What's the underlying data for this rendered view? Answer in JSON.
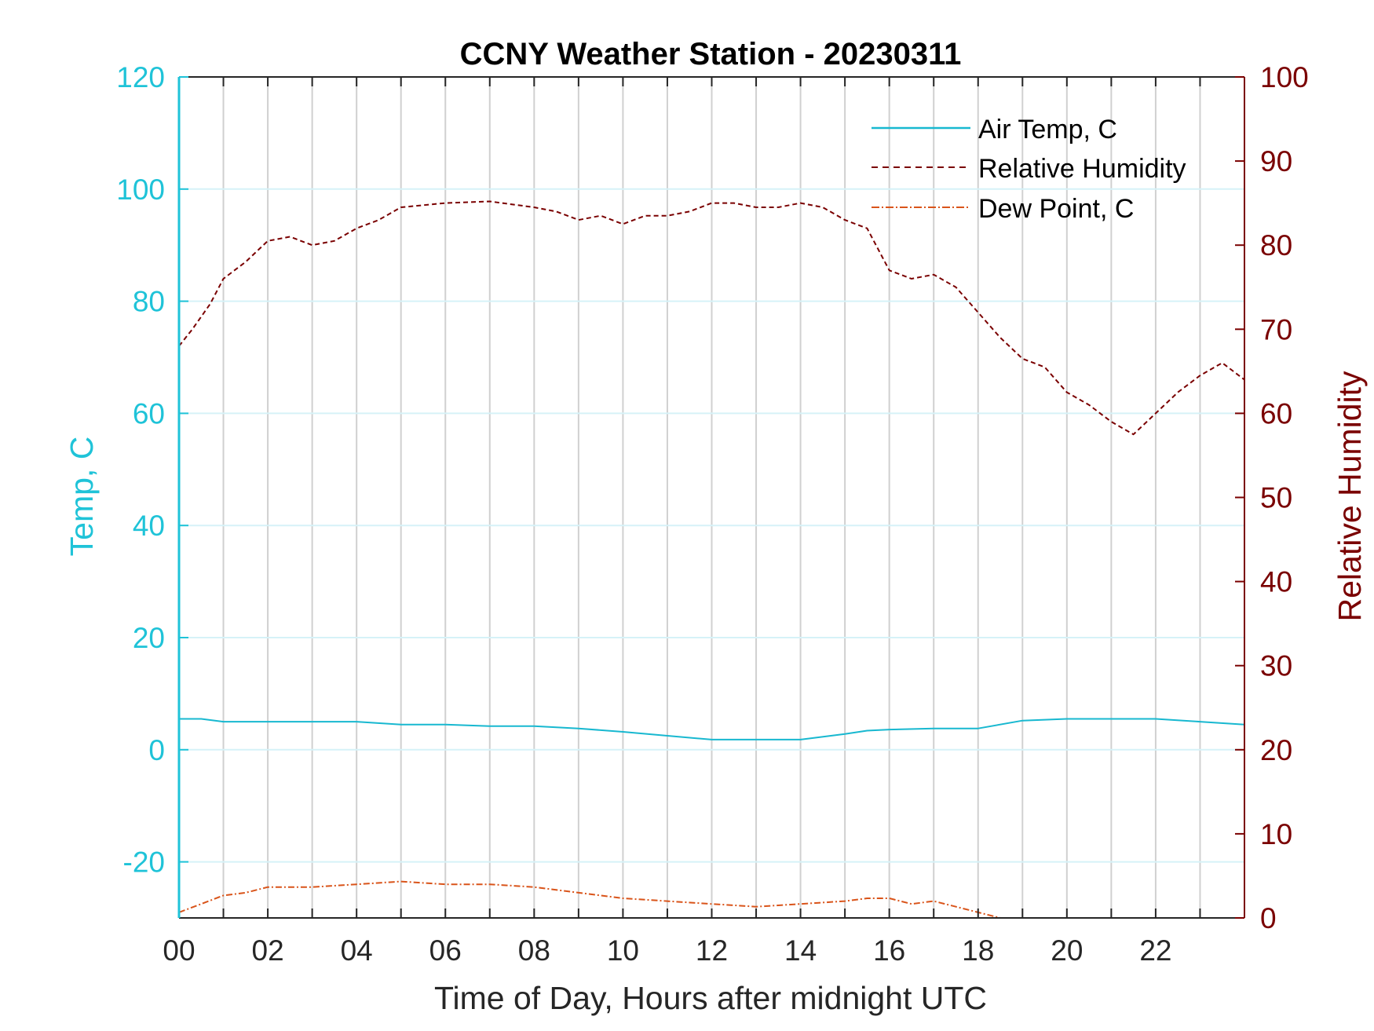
{
  "chart_data": {
    "type": "line",
    "title": "CCNY Weather Station - 20230311",
    "xlabel": "Time of Day, Hours after midnight UTC",
    "ylabel_left": "Temp, C",
    "ylabel_right": "Relative Humidity",
    "xlim": [
      0,
      24
    ],
    "ylim_left": [
      -30,
      120
    ],
    "ylim_right": [
      0,
      100
    ],
    "x_ticks": [
      0,
      2,
      4,
      6,
      8,
      10,
      12,
      14,
      16,
      18,
      20,
      22
    ],
    "x_tick_labels": [
      "00",
      "02",
      "04",
      "06",
      "08",
      "10",
      "12",
      "14",
      "16",
      "18",
      "20",
      "22"
    ],
    "y_left_ticks": [
      -20,
      0,
      20,
      40,
      60,
      80,
      100,
      120
    ],
    "y_left_tick_labels": [
      "-20",
      "0",
      "20",
      "40",
      "60",
      "80",
      "100",
      "120"
    ],
    "y_right_ticks": [
      0,
      10,
      20,
      30,
      40,
      50,
      60,
      70,
      80,
      90,
      100
    ],
    "y_right_tick_labels": [
      "0",
      "10",
      "20",
      "30",
      "40",
      "50",
      "60",
      "70",
      "80",
      "90",
      "100"
    ],
    "grid": true,
    "legend_position": "top-right",
    "colors": {
      "left_axis": "#1fc3d8",
      "right_axis": "#7a0000",
      "air_temp": "#18b8d0",
      "humidity": "#7a0000",
      "dew_point": "#d9541a",
      "grid_vertical": "#d0d0d0",
      "grid_horizontal": "#d6f2f8"
    },
    "series": [
      {
        "name": "Air Temp, C",
        "axis": "left",
        "style": "solid",
        "x": [
          0,
          0.5,
          1,
          2,
          3,
          4,
          5,
          6,
          7,
          8,
          9,
          10,
          11,
          12,
          13,
          14,
          15,
          15.5,
          16,
          17,
          18,
          19,
          20,
          21,
          22,
          23,
          24
        ],
        "values": [
          5.5,
          5.5,
          5,
          5,
          5,
          5,
          4.5,
          4.5,
          4.2,
          4.2,
          3.8,
          3.2,
          2.5,
          1.8,
          1.8,
          1.8,
          2.8,
          3.4,
          3.6,
          3.8,
          3.8,
          5.2,
          5.5,
          5.5,
          5.5,
          5,
          4.5
        ]
      },
      {
        "name": "Relative Humidity",
        "axis": "right",
        "style": "dashed",
        "x": [
          0,
          0.3,
          0.7,
          1,
          1.5,
          2,
          2.5,
          3,
          3.5,
          4,
          4.5,
          5,
          6,
          7,
          8,
          8.5,
          9,
          9.5,
          10,
          10.5,
          11,
          11.5,
          12,
          12.5,
          13,
          13.5,
          14,
          14.5,
          15,
          15.5,
          16,
          16.5,
          17,
          17.5,
          18,
          18.5,
          19,
          19.5,
          20,
          20.5,
          21,
          21.5,
          22,
          22.5,
          23,
          23.5,
          24
        ],
        "values": [
          68,
          70,
          73,
          76,
          78,
          80.5,
          81,
          80,
          80.5,
          82,
          83,
          84.5,
          85,
          85.2,
          84.5,
          84,
          83,
          83.5,
          82.5,
          83.5,
          83.5,
          84,
          85,
          85,
          84.5,
          84.5,
          85,
          84.5,
          83,
          82,
          77,
          76,
          76.5,
          75,
          72,
          69,
          66.5,
          65.5,
          62.5,
          61,
          59,
          57.5,
          60,
          62.5,
          64.5,
          66,
          64
        ]
      },
      {
        "name": "Dew Point, C",
        "axis": "left",
        "style": "dash-dot",
        "x": [
          0,
          0.5,
          1,
          1.5,
          2,
          3,
          4,
          5,
          6,
          7,
          8,
          9,
          10,
          11,
          12,
          13,
          14,
          15,
          15.5,
          16,
          16.5,
          17,
          17.5,
          18,
          18.5,
          19,
          19.5
        ],
        "values": [
          -29,
          -27.5,
          -26,
          -25.5,
          -24.5,
          -24.5,
          -24,
          -23.5,
          -24,
          -24,
          -24.5,
          -25.5,
          -26.5,
          -27,
          -27.5,
          -28,
          -27.5,
          -27,
          -26.5,
          -26.5,
          -27.5,
          -27,
          -28,
          -29,
          -30,
          -30,
          -30
        ]
      }
    ]
  }
}
